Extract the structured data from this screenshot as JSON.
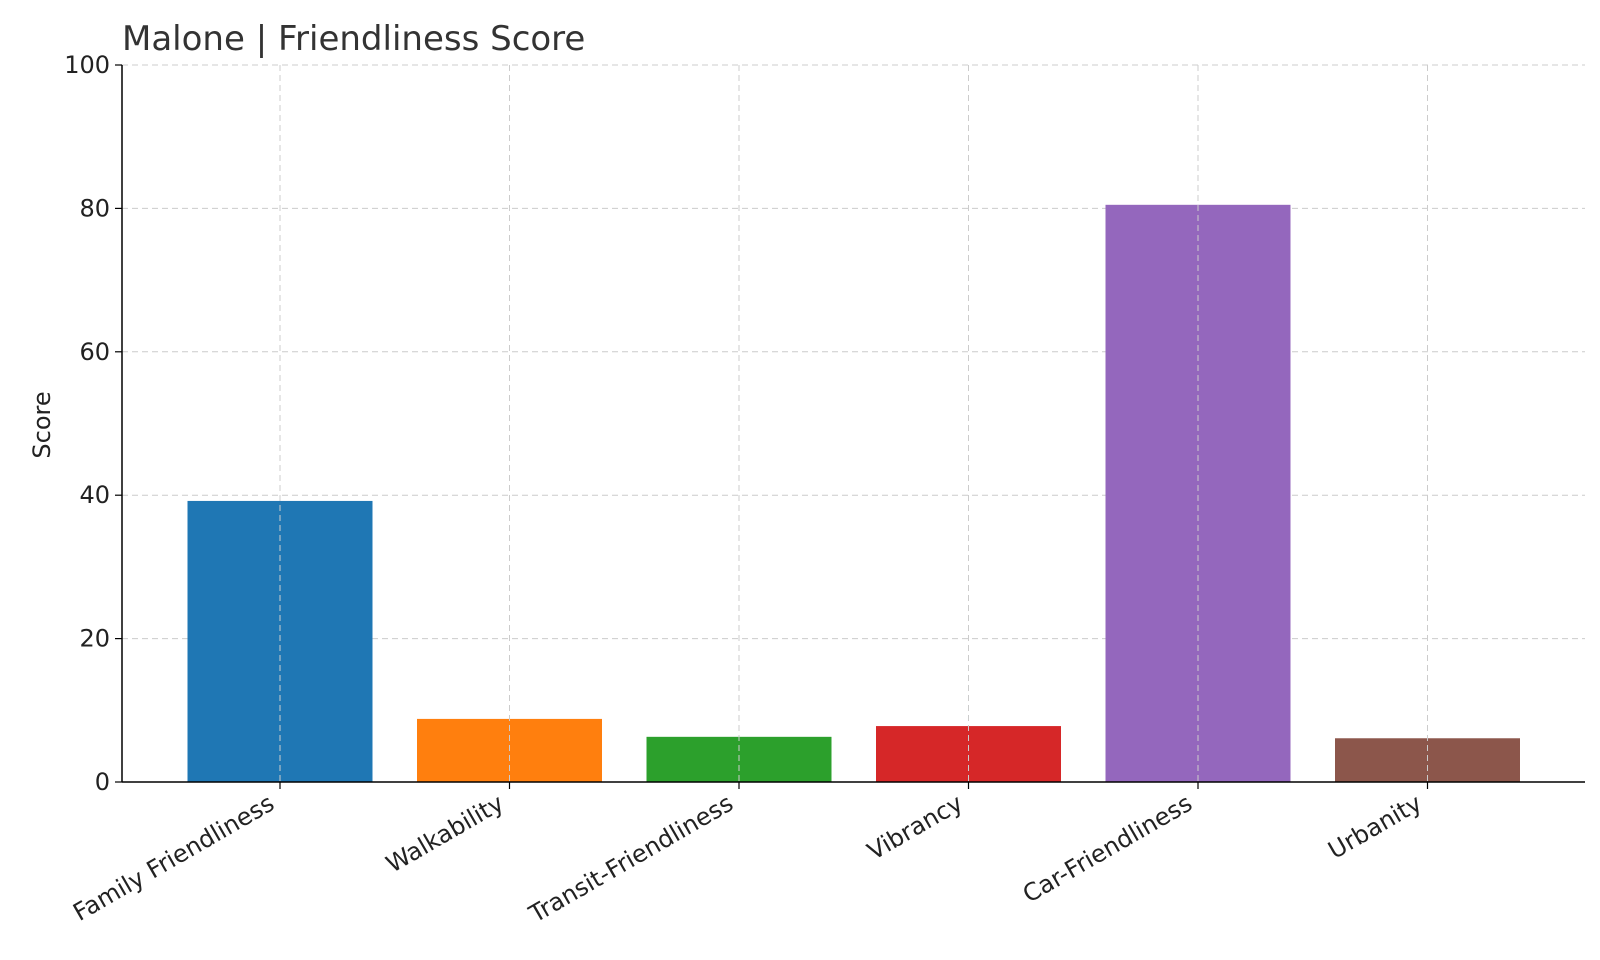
{
  "chart_data": {
    "type": "bar",
    "title": "Malone |  Friendliness Score",
    "xlabel": "",
    "ylabel": "Score",
    "ylim": [
      0,
      100
    ],
    "yticks": [
      0,
      20,
      40,
      60,
      80,
      100
    ],
    "grid": true,
    "categories": [
      "Family Friendliness",
      "Walkability",
      "Transit-Friendliness",
      "Vibrancy",
      "Car-Friendliness",
      "Urbanity"
    ],
    "values": [
      39.2,
      8.8,
      6.3,
      7.8,
      80.5,
      6.1
    ],
    "colors": [
      "#1f77b4",
      "#ff7f0e",
      "#2ca02c",
      "#d62728",
      "#9467bd",
      "#8c564b"
    ]
  }
}
